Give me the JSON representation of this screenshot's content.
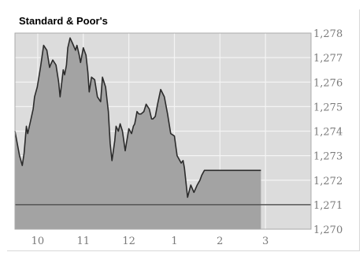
{
  "chart_data": {
    "type": "area",
    "title": "Standard & Poor's",
    "xlabel": "",
    "ylabel": "",
    "x_tick_labels": [
      "10",
      "11",
      "12",
      "1",
      "2",
      "3"
    ],
    "x_ticks_hours": [
      10,
      11,
      12,
      13,
      14,
      15
    ],
    "xlim_hours": [
      9.5,
      16
    ],
    "y_tick_labels": [
      "1,278",
      "1,277",
      "1,276",
      "1,275",
      "1,274",
      "1,273",
      "1,272",
      "1,271",
      "1,270"
    ],
    "y_ticks": [
      1278,
      1277,
      1276,
      1275,
      1274,
      1273,
      1272,
      1271,
      1270
    ],
    "ylim": [
      1270,
      1278
    ],
    "reference_value": 1271,
    "grid": true,
    "series": [
      {
        "x": [
          9.5,
          9.55,
          9.6,
          9.66,
          9.7,
          9.75,
          9.78,
          9.84,
          9.9,
          9.93,
          9.99,
          10.06,
          10.13,
          10.2,
          10.26,
          10.28,
          10.33,
          10.4,
          10.46,
          10.49,
          10.56,
          10.59,
          10.63,
          10.66,
          10.71,
          10.76,
          10.83,
          10.86,
          10.91,
          10.94,
          11.0,
          11.06,
          11.1,
          11.13,
          11.18,
          11.25,
          11.31,
          11.38,
          11.42,
          11.49,
          11.55,
          11.59,
          11.63,
          11.69,
          11.72,
          11.77,
          11.81,
          11.86,
          11.92,
          12.0,
          12.06,
          12.1,
          12.13,
          12.15,
          12.18,
          12.22,
          12.27,
          12.33,
          12.38,
          12.45,
          12.5,
          12.53,
          12.58,
          12.63,
          12.7,
          12.78,
          12.85,
          12.92,
          13.0,
          13.06,
          13.15,
          13.19,
          13.22,
          13.29,
          13.36,
          13.43,
          13.5,
          13.56,
          13.6,
          13.66,
          13.73,
          13.8,
          13.87,
          13.95,
          14.0,
          14.05,
          14.1,
          14.14,
          14.2,
          14.25,
          14.32,
          14.38,
          14.43,
          14.48,
          14.54,
          14.6,
          14.66,
          14.72,
          14.78,
          14.86,
          14.9
        ],
        "y": [
          1274.0,
          1273.5,
          1273.0,
          1272.6,
          1273.1,
          1274.2,
          1273.9,
          1274.4,
          1274.9,
          1275.4,
          1275.8,
          1276.6,
          1277.5,
          1277.3,
          1276.6,
          1276.7,
          1276.9,
          1276.7,
          1276.0,
          1275.4,
          1276.5,
          1276.3,
          1276.7,
          1277.4,
          1277.8,
          1277.6,
          1277.3,
          1277.5,
          1277.1,
          1276.8,
          1277.4,
          1277.1,
          1276.4,
          1275.6,
          1276.2,
          1276.1,
          1275.4,
          1275.2,
          1276.2,
          1275.8,
          1274.8,
          1273.5,
          1272.8,
          1273.6,
          1274.2,
          1274.0,
          1274.3,
          1274.0,
          1273.2,
          1274.1,
          1273.9,
          1274.2,
          1274.3,
          1274.5,
          1274.8,
          1274.7,
          1274.7,
          1274.8,
          1275.1,
          1274.9,
          1274.5,
          1274.5,
          1274.6,
          1275.1,
          1275.7,
          1275.4,
          1274.7,
          1273.9,
          1273.8,
          1273.0,
          1272.7,
          1272.8,
          1272.5,
          1271.3,
          1271.8,
          1271.5,
          1271.8,
          1272.0,
          1272.2,
          1272.4,
          1272.4,
          1272.4,
          1272.4,
          1272.4,
          1272.4,
          1272.4,
          1272.4,
          1272.4,
          1272.4,
          1272.4,
          1272.4,
          1272.4,
          1272.4,
          1272.4,
          1272.4,
          1272.4,
          1272.4,
          1272.4,
          1272.4,
          1272.4,
          1272.4
        ]
      }
    ],
    "colors": {
      "plot_background": "#dcdcdc",
      "area_fill": "#a3a3a3",
      "line": "#2b2b2b",
      "reference_line": "#555555",
      "grid": "#f4f4f4",
      "plot_border": "#aaaaaa",
      "tick_text": "#7a7a7a"
    }
  }
}
